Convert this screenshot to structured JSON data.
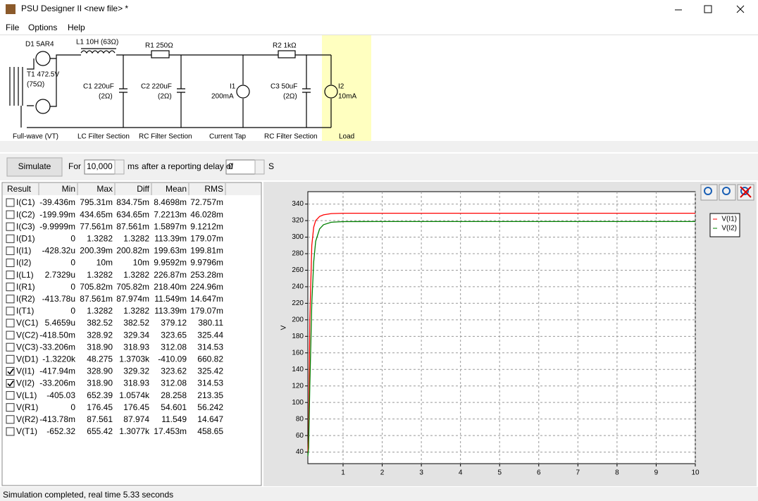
{
  "window": {
    "title": "PSU Designer II  <new file> *",
    "menu": [
      "File",
      "Options",
      "Help"
    ]
  },
  "circuit": {
    "labels": [
      "D1 5AR4",
      "L1 10H (63Ω)",
      "R1 250Ω",
      "R2 1kΩ",
      "T1 472.5V",
      "(75Ω)",
      "C1 220uF",
      "(2Ω)",
      "C2 220uF",
      "(2Ω)",
      "I1",
      "200mA",
      "C3 50uF",
      "(2Ω)",
      "I2",
      "10mA"
    ],
    "sections": [
      "Full-wave (VT)",
      "LC Filter Section",
      "RC Filter Section",
      "Current Tap",
      "RC Filter Section",
      "Load"
    ]
  },
  "controls": {
    "simulate": "Simulate",
    "for": "For",
    "duration": "10,000",
    "ms": "ms",
    "delay_label": "after a reporting delay of",
    "delay": "0",
    "s": "S"
  },
  "table": {
    "headers": [
      "Result",
      "Min",
      "Max",
      "Diff",
      "Mean",
      "RMS"
    ],
    "checked": [
      false,
      false,
      false,
      false,
      false,
      false,
      false,
      false,
      false,
      false,
      false,
      false,
      false,
      false,
      true,
      true,
      false,
      false,
      false,
      false
    ],
    "rows": [
      [
        "I(C1)",
        "-39.436m",
        "795.31m",
        "834.75m",
        "8.4698m",
        "72.757m"
      ],
      [
        "I(C2)",
        "-199.99m",
        "434.65m",
        "634.65m",
        "7.2213m",
        "46.028m"
      ],
      [
        "I(C3)",
        "-9.9999m",
        "77.561m",
        "87.561m",
        "1.5897m",
        "9.1212m"
      ],
      [
        "I(D1)",
        "0",
        "1.3282",
        "1.3282",
        "113.39m",
        "179.07m"
      ],
      [
        "I(I1)",
        "-428.32u",
        "200.39m",
        "200.82m",
        "199.63m",
        "199.81m"
      ],
      [
        "I(I2)",
        "0",
        "10m",
        "10m",
        "9.9592m",
        "9.9796m"
      ],
      [
        "I(L1)",
        "2.7329u",
        "1.3282",
        "1.3282",
        "226.87m",
        "253.28m"
      ],
      [
        "I(R1)",
        "0",
        "705.82m",
        "705.82m",
        "218.40m",
        "224.96m"
      ],
      [
        "I(R2)",
        "-413.78u",
        "87.561m",
        "87.974m",
        "11.549m",
        "14.647m"
      ],
      [
        "I(T1)",
        "0",
        "1.3282",
        "1.3282",
        "113.39m",
        "179.07m"
      ],
      [
        "V(C1)",
        "5.4659u",
        "382.52",
        "382.52",
        "379.12",
        "380.11"
      ],
      [
        "V(C2)",
        "-418.50m",
        "328.92",
        "329.34",
        "323.65",
        "325.44"
      ],
      [
        "V(C3)",
        "-33.206m",
        "318.90",
        "318.93",
        "312.08",
        "314.53"
      ],
      [
        "V(D1)",
        "-1.3220k",
        "48.275",
        "1.3703k",
        "-410.09",
        "660.82"
      ],
      [
        "V(I1)",
        "-417.94m",
        "328.90",
        "329.32",
        "323.62",
        "325.42"
      ],
      [
        "V(I2)",
        "-33.206m",
        "318.90",
        "318.93",
        "312.08",
        "314.53"
      ],
      [
        "V(L1)",
        "-405.03",
        "652.39",
        "1.0574k",
        "28.258",
        "213.35"
      ],
      [
        "V(R1)",
        "0",
        "176.45",
        "176.45",
        "54.601",
        "56.242"
      ],
      [
        "V(R2)",
        "-413.78m",
        "87.561",
        "87.974",
        "11.549",
        "14.647"
      ],
      [
        "V(T1)",
        "-652.32",
        "655.42",
        "1.3077k",
        "17.453m",
        "458.65"
      ]
    ]
  },
  "chart": {
    "type": "line",
    "ylabel": "V",
    "xlim": [
      0.1,
      10
    ],
    "xticks": [
      1,
      2,
      3,
      4,
      5,
      6,
      7,
      8,
      9,
      10
    ],
    "ylim": [
      26,
      355
    ],
    "yticks": [
      40,
      60,
      80,
      100,
      120,
      140,
      160,
      180,
      200,
      220,
      240,
      260,
      280,
      300,
      320,
      340
    ],
    "grid": true,
    "x": [
      0.1,
      0.12,
      0.15,
      0.2,
      0.25,
      0.3,
      0.4,
      0.5,
      0.7,
      1,
      2,
      5,
      10
    ],
    "series": [
      {
        "name": "V(I1)",
        "color": "#ff0000",
        "values": [
          40,
          60,
          200,
          290,
          312,
          320,
          325,
          327,
          328.5,
          328.9,
          328.9,
          328.9,
          328.9
        ]
      },
      {
        "name": "V(I2)",
        "color": "#008000",
        "values": [
          35,
          45,
          120,
          220,
          270,
          295,
          310,
          315,
          318,
          318.8,
          318.9,
          318.9,
          318.9
        ]
      }
    ]
  },
  "status": "Simulation completed, real time 5.33 seconds"
}
